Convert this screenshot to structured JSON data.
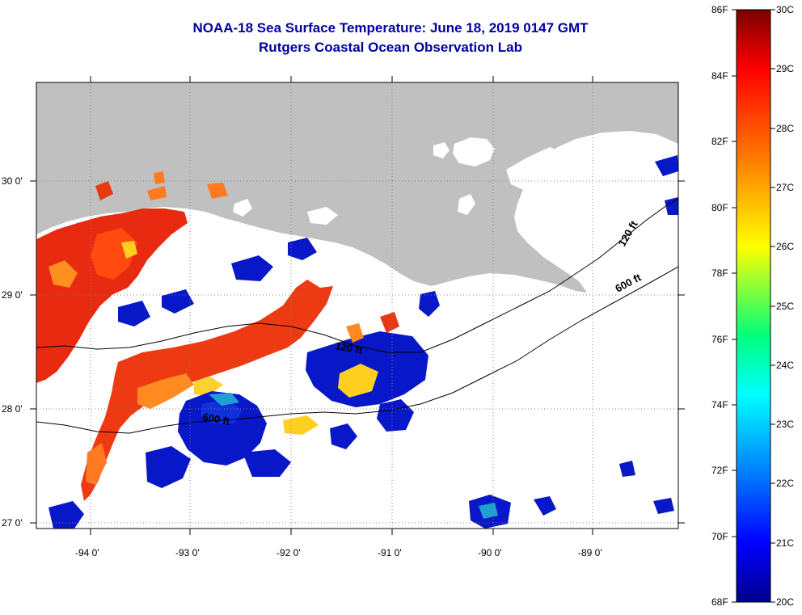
{
  "header": {
    "title": "NOAA-18 Sea Surface Temperature:  June 18, 2019 0147 GMT",
    "subtitle": "Rutgers Coastal Ocean Observation Lab"
  },
  "map": {
    "lon_labels": [
      "-94 0'",
      "-93 0'",
      "-92 0'",
      "-91 0'",
      "-90 0'",
      "-89 0'"
    ],
    "lat_labels": [
      "30 0'",
      "29 0'",
      "28 0'",
      "27 0'"
    ],
    "contour_labels": {
      "c120_east": "120 ft",
      "c600_east": "600 ft",
      "c120_mid": "120 ft",
      "c600_mid": "600 ft"
    },
    "colors": {
      "land": "#c0c0c0",
      "cloud": "#ffffff",
      "grid": "#808080"
    }
  },
  "colorbar": {
    "fahrenheit_labels": [
      "86F",
      "84F",
      "82F",
      "80F",
      "78F",
      "76F",
      "74F",
      "72F",
      "70F",
      "68F"
    ],
    "celsius_labels": [
      "30C",
      "29C",
      "28C",
      "27C",
      "26C",
      "25C",
      "24C",
      "23C",
      "22C",
      "21C",
      "20C"
    ],
    "gradient_stops": [
      "#8b0000",
      "#ff0000",
      "#ff8000",
      "#ffff00",
      "#00ff80",
      "#00ffff",
      "#0080ff",
      "#0000ff",
      "#00008b"
    ]
  }
}
